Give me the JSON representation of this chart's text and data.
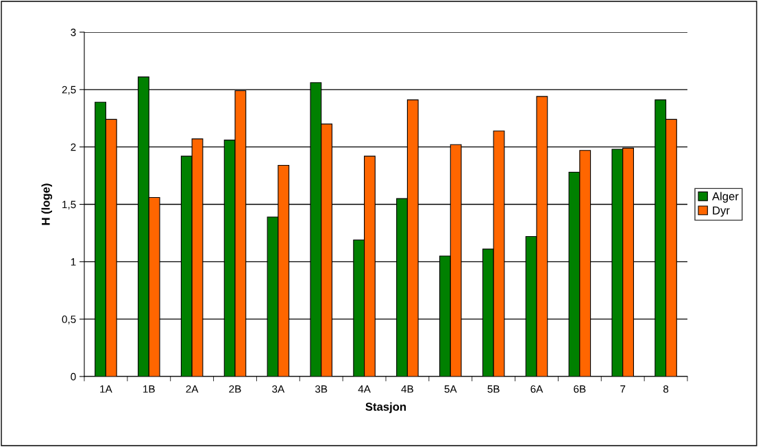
{
  "chart_data": {
    "type": "bar",
    "xlabel": "Stasjon",
    "ylabel": "H (loge)",
    "categories": [
      "1A",
      "1B",
      "2A",
      "2B",
      "3A",
      "3B",
      "4A",
      "4B",
      "5A",
      "5B",
      "6A",
      "6B",
      "7",
      "8"
    ],
    "series": [
      {
        "name": "Alger",
        "color": "#008000",
        "values": [
          2.39,
          2.61,
          1.92,
          2.06,
          1.39,
          2.56,
          1.19,
          1.55,
          1.05,
          1.11,
          1.22,
          1.78,
          1.98,
          2.41
        ]
      },
      {
        "name": "Dyr",
        "color": "#ff6600",
        "values": [
          2.24,
          1.56,
          2.07,
          2.49,
          1.84,
          2.2,
          1.92,
          2.41,
          2.02,
          2.14,
          2.44,
          1.97,
          1.99,
          2.24
        ]
      }
    ],
    "ylim": [
      0,
      3
    ],
    "yticks": [
      0,
      {
        "value": 0.5,
        "label": "0,5"
      },
      1,
      {
        "value": 1.5,
        "label": "1,5"
      },
      2,
      {
        "value": 2.5,
        "label": "2,5"
      },
      3
    ],
    "grid": "y",
    "legend": "right"
  }
}
